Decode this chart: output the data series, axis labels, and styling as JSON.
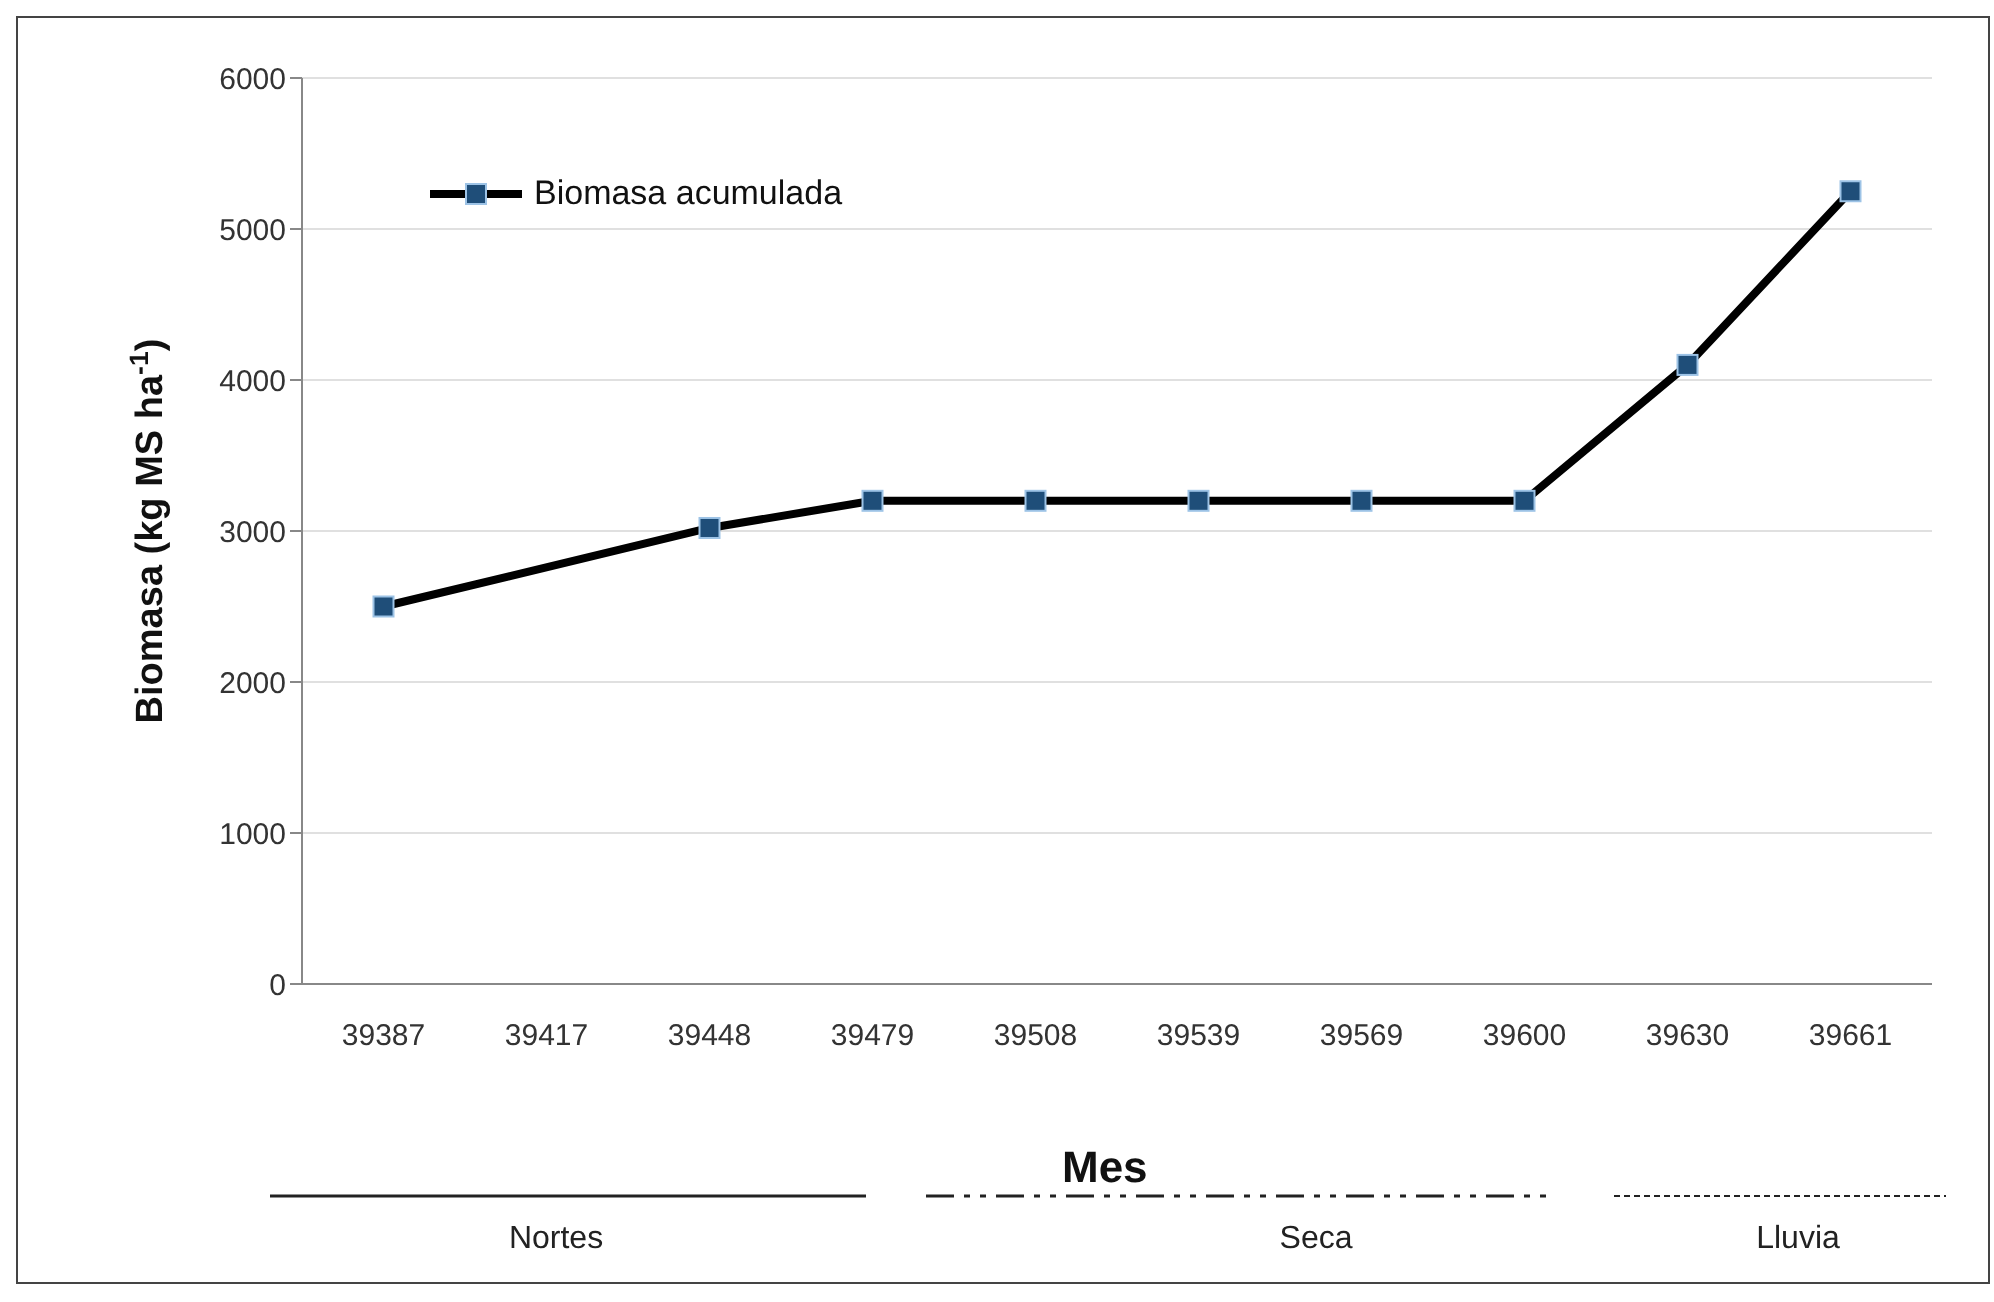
{
  "chart_data": {
    "type": "line",
    "xlabel": "Mes",
    "ylabel": "Biomasa (kg MS ha$^{-1}$)",
    "categories": [
      "39387",
      "39417",
      "39448",
      "39479",
      "39508",
      "39539",
      "39569",
      "39600",
      "39630",
      "39661"
    ],
    "series": [
      {
        "name": "Biomasa acumulada",
        "color": "#000000",
        "values": [
          2500,
          null,
          3020,
          3200,
          3200,
          3200,
          3200,
          3200,
          4100,
          5250
        ]
      }
    ],
    "ylim": [
      0,
      6000
    ],
    "yticks": [
      0,
      1000,
      2000,
      3000,
      4000,
      5000,
      6000
    ],
    "grid": "y",
    "legend": "top left",
    "marker": "square",
    "line_style": "solid",
    "annotations": [
      "Nortes",
      "Seca",
      "Lluvia"
    ]
  }
}
